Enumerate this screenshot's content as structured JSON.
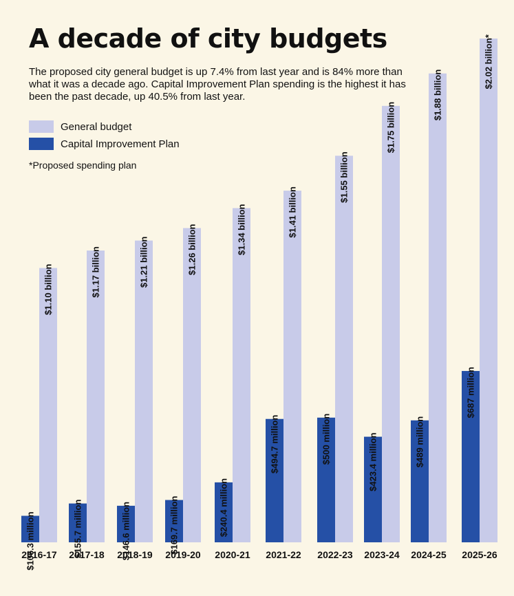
{
  "title": "A decade of city budgets",
  "subtitle": "The proposed city general budget is up 7.4% from last year and is 84% more than what it was a decade ago. Capital Improvement Plan spending is the highest it has been the past decade, up 40.5% from last year.",
  "footnote": "*Proposed spending plan",
  "colors": {
    "general": "#c8cbe9",
    "capital": "#2550a6",
    "background": "#fbf6e6"
  },
  "chart_data": {
    "type": "bar",
    "categories": [
      "2016-17",
      "2017-18",
      "2018-19",
      "2019-20",
      "2020-21",
      "2021-22",
      "2022-23",
      "2023-24",
      "2024-25",
      "2025-26"
    ],
    "unit": "millions of dollars",
    "series": [
      {
        "name": "General budget",
        "values": [
          1100,
          1170,
          1210,
          1260,
          1340,
          1410,
          1550,
          1750,
          1880,
          2020
        ],
        "labels": [
          "$1.10 billion",
          "$1.17 billion",
          "$1.21 billion",
          "$1.26 billion",
          "$1.34 billion",
          "$1.41 billion",
          "$1.55 billion",
          "$1.75 billion",
          "$1.88 billion",
          "$2.02 billion*"
        ]
      },
      {
        "name": "Capital Improvement Plan",
        "values": [
          106.3,
          155.7,
          146.6,
          169.7,
          240.4,
          494.7,
          500,
          423.4,
          489,
          687
        ],
        "labels": [
          "$106.3 million",
          "$155.7 million",
          "$146.6 million",
          "$169.7 million",
          "$240.4 million",
          "$494.7 million",
          "$500 million",
          "$423.4 million",
          "$489 million",
          "$687 million"
        ]
      }
    ],
    "ylim": [
      0,
      2020
    ],
    "grid": false,
    "legend": "top-left"
  }
}
